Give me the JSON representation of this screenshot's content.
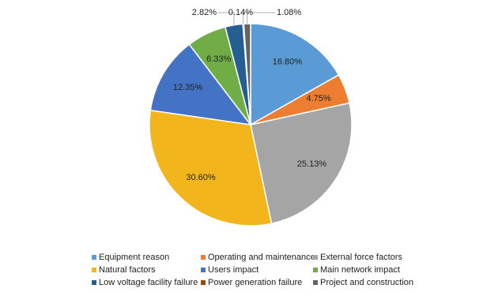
{
  "chart_data": {
    "type": "pie",
    "categories": [
      "Equipment reason",
      "Operating and maintenance",
      "External force factors",
      "Natural factors",
      "Users impact",
      "Main network impact",
      "Low voltage facility failure",
      "Power generation failure",
      "Project and construction"
    ],
    "values": [
      16.8,
      4.75,
      25.13,
      30.6,
      12.35,
      6.33,
      2.82,
      0.14,
      1.08
    ],
    "value_labels": [
      "16.80%",
      "4.75%",
      "25.13%",
      "30.60%",
      "12.35%",
      "6.33%",
      "2.82%",
      "0.14%",
      "1.08%"
    ],
    "colors": [
      "#5b9bd5",
      "#ed7d31",
      "#a5a5a5",
      "#f2b51c",
      "#4472c4",
      "#70ad47",
      "#255e91",
      "#9e480e",
      "#636363"
    ],
    "legend": "bottom"
  }
}
